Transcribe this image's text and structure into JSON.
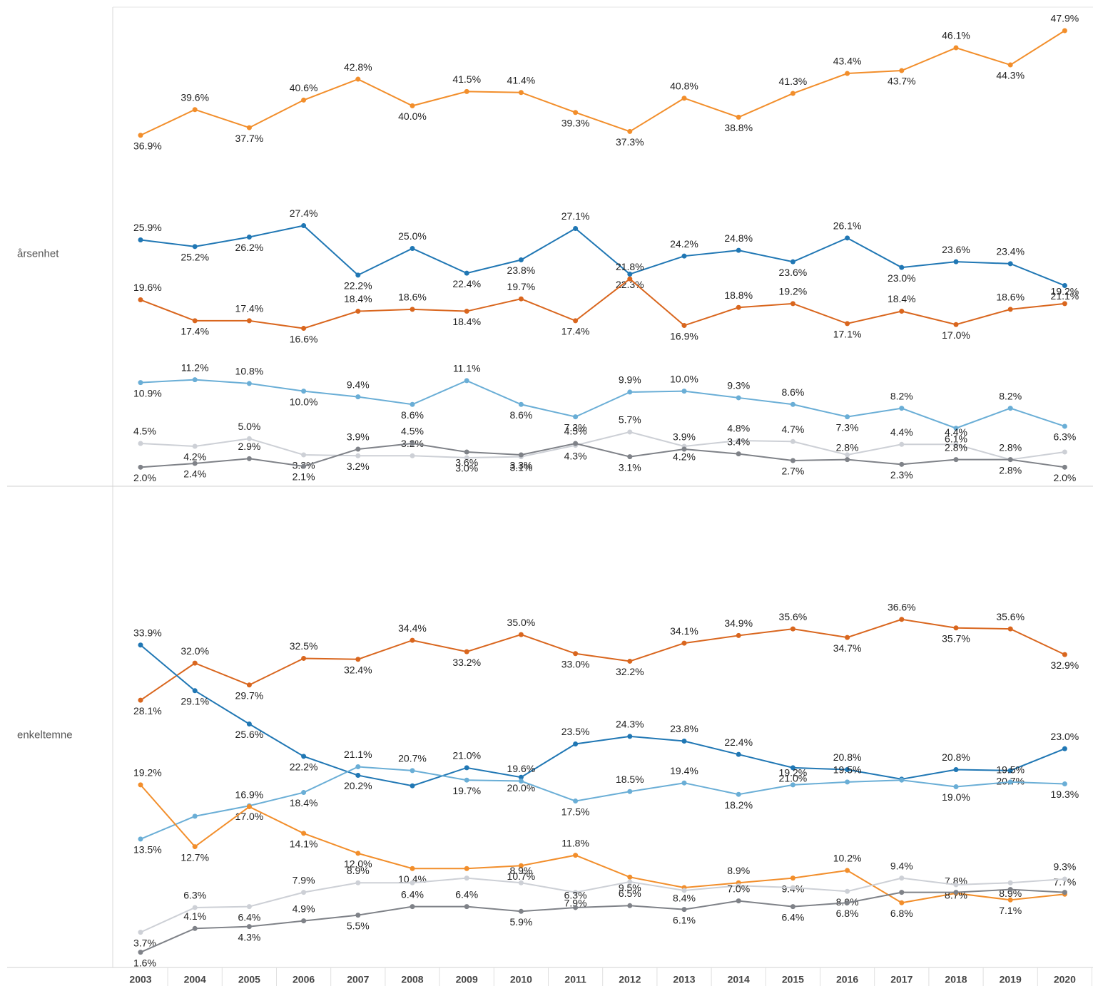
{
  "chart_data": [
    {
      "type": "line",
      "title": "årsenhet",
      "categories": [
        "2003",
        "2004",
        "2005",
        "2006",
        "2007",
        "2008",
        "2009",
        "2010",
        "2011",
        "2012",
        "2013",
        "2014",
        "2015",
        "2016",
        "2017",
        "2018",
        "2019",
        "2020"
      ],
      "ylim": [
        0,
        50
      ],
      "series": [
        {
          "color": "#f28e2b",
          "values": [
            36.9,
            39.6,
            37.7,
            40.6,
            42.8,
            40.0,
            41.5,
            41.4,
            39.3,
            37.3,
            40.8,
            38.8,
            41.3,
            43.4,
            43.7,
            46.1,
            44.3,
            47.9
          ],
          "value_labels": [
            "36.9%",
            "39.6%",
            "37.7%",
            "40.6%",
            "42.8%",
            "40.0%",
            "41.5%",
            "41.4%",
            "39.3%",
            "37.3%",
            "40.8%",
            "38.8%",
            "41.3%",
            "43.4%",
            "43.7%",
            "46.1%",
            "44.3%",
            "47.9%"
          ]
        },
        {
          "color": "#2077b4",
          "values": [
            25.9,
            25.2,
            26.2,
            27.4,
            22.2,
            25.0,
            22.4,
            23.8,
            27.1,
            22.3,
            24.2,
            24.8,
            23.6,
            26.1,
            23.0,
            23.6,
            23.4,
            21.1
          ],
          "value_labels": [
            "25.9%",
            "25.2%",
            "26.2%",
            "27.4%",
            "22.2%",
            "25.0%",
            "22.4%",
            "23.8%",
            "27.1%",
            "22.3%",
            "24.2%",
            "24.8%",
            "23.6%",
            "26.1%",
            "23.0%",
            "23.6%",
            "23.4%",
            "21.1%"
          ]
        },
        {
          "color": "#d9661e",
          "values": [
            19.6,
            17.4,
            17.4,
            16.6,
            18.4,
            18.6,
            18.4,
            19.7,
            17.4,
            21.8,
            16.9,
            18.8,
            19.2,
            17.1,
            18.4,
            17.0,
            18.6,
            19.2
          ],
          "value_labels": [
            "19.6%",
            "17.4%",
            "17.4%",
            "16.6%",
            "18.4%",
            "18.6%",
            "18.4%",
            "19.7%",
            "17.4%",
            "21.8%",
            "16.9%",
            "18.8%",
            "19.2%",
            "17.1%",
            "18.4%",
            "17.0%",
            "18.6%",
            "19.2%"
          ]
        },
        {
          "color": "#6aaed6",
          "values": [
            10.9,
            11.2,
            10.8,
            10.0,
            9.4,
            8.6,
            11.1,
            8.6,
            7.3,
            9.9,
            10.0,
            9.3,
            8.6,
            7.3,
            8.2,
            6.1,
            8.2,
            6.3
          ],
          "value_labels": [
            "10.9%",
            "11.2%",
            "10.8%",
            "10.0%",
            "9.4%",
            "8.6%",
            "11.1%",
            "8.6%",
            "7.3%",
            "9.9%",
            "10.0%",
            "9.3%",
            "8.6%",
            "7.3%",
            "8.2%",
            "6.1%",
            "8.2%",
            "6.3%"
          ]
        },
        {
          "color": "#cdd0d6",
          "values": [
            4.5,
            4.2,
            5.0,
            3.3,
            3.2,
            3.2,
            3.0,
            3.1,
            4.3,
            5.7,
            4.2,
            4.8,
            4.7,
            3.3,
            4.4,
            4.4,
            2.8,
            3.6
          ],
          "value_labels": [
            "4.5%",
            "4.2%",
            "5.0%",
            "3.3%",
            "3.2%",
            "3.2%",
            "3.0%",
            "3.1%",
            "4.3%",
            "5.7%",
            "4.2%",
            "4.8%",
            "4.7%",
            null,
            "4.4%",
            "4.4%",
            "2.8%",
            null
          ]
        },
        {
          "color": "#7f8288",
          "values": [
            2.0,
            2.4,
            2.9,
            2.1,
            3.9,
            4.5,
            3.6,
            3.3,
            4.5,
            3.1,
            3.9,
            3.4,
            2.7,
            2.8,
            2.3,
            2.8,
            2.8,
            2.0
          ],
          "value_labels": [
            "2.0%",
            "2.4%",
            "2.9%",
            "2.1%",
            "3.9%",
            "4.5%",
            "3.6%",
            "3.3%",
            "4.5%",
            "3.1%",
            "3.9%",
            "3.4%",
            "2.7%",
            "2.8%",
            "2.3%",
            "2.8%",
            "2.8%",
            "2.0%"
          ]
        }
      ]
    },
    {
      "type": "line",
      "title": "enkeltemne",
      "categories": [
        "2003",
        "2004",
        "2005",
        "2006",
        "2007",
        "2008",
        "2009",
        "2010",
        "2011",
        "2012",
        "2013",
        "2014",
        "2015",
        "2016",
        "2017",
        "2018",
        "2019",
        "2020"
      ],
      "ylim": [
        0,
        50
      ],
      "series": [
        {
          "color": "#d9661e",
          "values": [
            28.1,
            32.0,
            29.7,
            32.5,
            32.4,
            34.4,
            33.2,
            35.0,
            33.0,
            32.2,
            34.1,
            34.9,
            35.6,
            34.7,
            36.6,
            35.7,
            35.6,
            32.9
          ],
          "value_labels": [
            "28.1%",
            "32.0%",
            "29.7%",
            "32.5%",
            "32.4%",
            "34.4%",
            "33.2%",
            "35.0%",
            "33.0%",
            "32.2%",
            "34.1%",
            "34.9%",
            "35.6%",
            "34.7%",
            "36.6%",
            "35.7%",
            "35.6%",
            "32.9%"
          ]
        },
        {
          "color": "#2077b4",
          "values": [
            33.9,
            29.1,
            25.6,
            22.2,
            20.2,
            19.1,
            21.0,
            20.0,
            23.5,
            24.3,
            23.8,
            22.4,
            21.0,
            20.8,
            19.8,
            20.8,
            20.7,
            23.0
          ],
          "value_labels": [
            "33.9%",
            "29.1%",
            "25.6%",
            "22.2%",
            "20.2%",
            null,
            "21.0%",
            "20.0%",
            "23.5%",
            "24.3%",
            "23.8%",
            "22.4%",
            "21.0%",
            "20.8%",
            null,
            "20.8%",
            "20.7%",
            "23.0%"
          ]
        },
        {
          "color": "#6aaed6",
          "values": [
            13.5,
            15.9,
            17.0,
            18.4,
            21.1,
            20.7,
            19.7,
            19.6,
            17.5,
            18.5,
            19.4,
            18.2,
            19.2,
            19.5,
            19.7,
            19.0,
            19.5,
            19.3
          ],
          "value_labels": [
            "13.5%",
            null,
            "17.0%",
            "18.4%",
            "21.1%",
            "20.7%",
            "19.7%",
            "19.6%",
            "17.5%",
            "18.5%",
            "19.4%",
            "18.2%",
            "19.2%",
            "19.5%",
            null,
            "19.0%",
            "19.5%",
            "19.3%"
          ]
        },
        {
          "color": "#f28e2b",
          "values": [
            19.2,
            12.7,
            16.9,
            14.1,
            12.0,
            10.4,
            10.4,
            10.7,
            11.8,
            9.5,
            8.4,
            8.9,
            9.4,
            10.2,
            6.8,
            7.8,
            7.1,
            7.7
          ],
          "value_labels": [
            "19.2%",
            "12.7%",
            "16.9%",
            "14.1%",
            "12.0%",
            "10.4%",
            null,
            "10.7%",
            "11.8%",
            "9.5%",
            "8.4%",
            "8.9%",
            "9.4%",
            "10.2%",
            "6.8%",
            "7.8%",
            "7.1%",
            "7.7%"
          ]
        },
        {
          "color": "#cdd0d6",
          "values": [
            3.7,
            6.3,
            6.4,
            7.9,
            8.9,
            8.9,
            9.4,
            8.9,
            7.9,
            9.0,
            8.1,
            8.6,
            8.4,
            8.0,
            9.4,
            8.7,
            8.9,
            9.3
          ],
          "value_labels": [
            "3.7%",
            "6.3%",
            "6.4%",
            "7.9%",
            "8.9%",
            null,
            null,
            "8.9%",
            "7.9%",
            null,
            null,
            null,
            null,
            "8.0%",
            "9.4%",
            "8.7%",
            "8.9%",
            "9.3%"
          ]
        },
        {
          "color": "#7f8288",
          "values": [
            1.6,
            4.1,
            4.3,
            4.9,
            5.5,
            6.4,
            6.4,
            5.9,
            6.3,
            6.5,
            6.1,
            7.0,
            6.4,
            6.8,
            7.9,
            7.9,
            8.2,
            7.9
          ],
          "value_labels": [
            "1.6%",
            "4.1%",
            "4.3%",
            "4.9%",
            "5.5%",
            "6.4%",
            "6.4%",
            "5.9%",
            "6.3%",
            "6.5%",
            "6.1%",
            "7.0%",
            "6.4%",
            "6.8%",
            null,
            null,
            null,
            null
          ]
        }
      ]
    }
  ]
}
